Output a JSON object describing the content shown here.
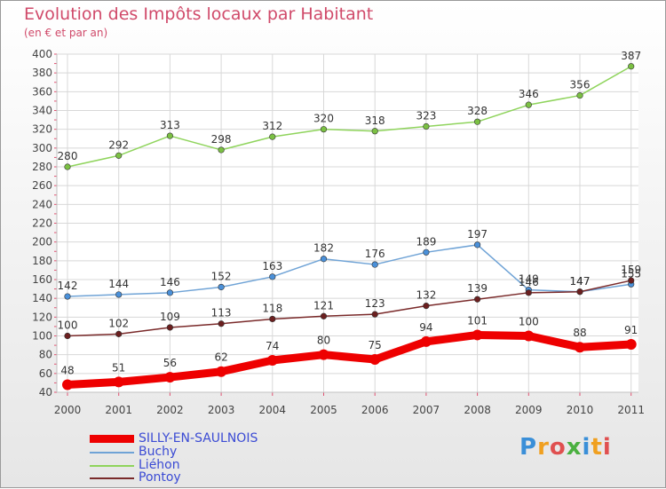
{
  "header": {
    "title": "Evolution des Impôts locaux par Habitant",
    "subtitle": "(en € et par an)"
  },
  "logo": {
    "text": "Proxiti",
    "letter_colors": [
      "#3a8fd8",
      "#f0a020",
      "#e05050",
      "#4ab040",
      "#3a8fd8",
      "#f0a020",
      "#e05050"
    ]
  },
  "chart_data": {
    "type": "line",
    "x": [
      "2000",
      "2001",
      "2002",
      "2003",
      "2004",
      "2005",
      "2006",
      "2007",
      "2008",
      "2009",
      "2010",
      "2011"
    ],
    "ylim": [
      40,
      400
    ],
    "yticks": [
      40,
      60,
      80,
      100,
      120,
      140,
      160,
      180,
      200,
      220,
      240,
      260,
      280,
      300,
      320,
      340,
      360,
      380,
      400
    ],
    "grid": true,
    "legend_position": "bottom-left",
    "series": [
      {
        "name": "Liéhon",
        "color": "#8fd45c",
        "marker": "#7bc043",
        "values": [
          280,
          292,
          313,
          298,
          312,
          320,
          318,
          323,
          328,
          346,
          356,
          387
        ],
        "labels": [
          "280",
          "292",
          "313",
          "298",
          "312",
          "320",
          "318",
          "323",
          "328",
          "346",
          "356",
          "387"
        ]
      },
      {
        "name": "Buchy",
        "color": "#6fa3d6",
        "marker": "#4a90d9",
        "values": [
          142,
          144,
          146,
          152,
          163,
          182,
          176,
          189,
          197,
          149,
          147,
          155
        ],
        "labels": [
          "142",
          "144",
          "146",
          "152",
          "163",
          "182",
          "176",
          "189",
          "197",
          "149",
          "147",
          "155"
        ]
      },
      {
        "name": "Pontoy",
        "color": "#7a2a2a",
        "marker": "#6b1f1f",
        "values": [
          100,
          102,
          109,
          113,
          118,
          121,
          123,
          132,
          139,
          146,
          147,
          159
        ],
        "labels": [
          "100",
          "102",
          "109",
          "113",
          "118",
          "121",
          "123",
          "132",
          "139",
          "146",
          "147",
          "159"
        ]
      },
      {
        "name": "SILLY-EN-SAULNOIS",
        "color": "#ee0000",
        "marker": "#ee0000",
        "values": [
          48,
          51,
          56,
          62,
          74,
          80,
          75,
          94,
          101,
          100,
          88,
          91
        ],
        "labels": [
          "48",
          "51",
          "56",
          "62",
          "74",
          "80",
          "75",
          "94",
          "101",
          "100",
          "88",
          "91"
        ]
      }
    ],
    "legend_order": [
      "SILLY-EN-SAULNOIS",
      "Buchy",
      "Liéhon",
      "Pontoy"
    ]
  }
}
